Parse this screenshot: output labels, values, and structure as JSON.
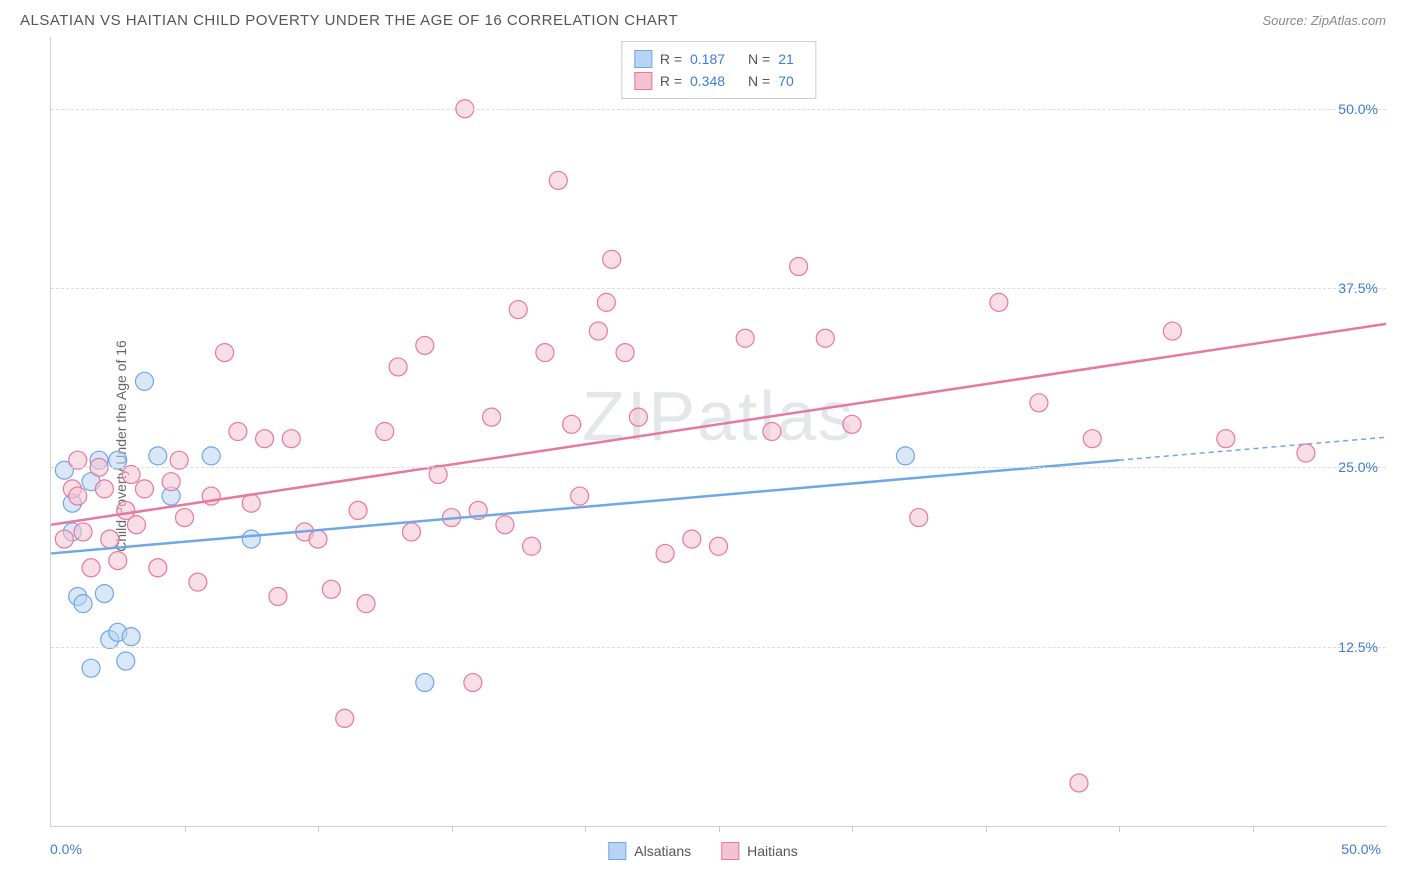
{
  "title": "ALSATIAN VS HAITIAN CHILD POVERTY UNDER THE AGE OF 16 CORRELATION CHART",
  "source": "Source: ZipAtlas.com",
  "ylabel": "Child Poverty Under the Age of 16",
  "watermark": "ZIPatlas",
  "chart": {
    "type": "scatter",
    "xlim": [
      0,
      50
    ],
    "ylim": [
      0,
      55
    ],
    "background_color": "#ffffff",
    "grid_color": "#dddddd",
    "border_color": "#d0d0d0",
    "tick_color": "#cccccc",
    "axis_label_color": "#3b7dd8",
    "ylabel_color": "#666666",
    "title_color": "#555555",
    "marker_radius": 9,
    "marker_opacity": 0.55,
    "line_width": 2.5,
    "y_gridlines": [
      12.5,
      25.0,
      37.5,
      50.0
    ],
    "y_tick_labels": [
      "12.5%",
      "25.0%",
      "37.5%",
      "50.0%"
    ],
    "x_ticks": [
      5,
      10,
      15,
      20,
      25,
      30,
      35,
      40,
      45
    ],
    "x_axis_labels": {
      "left": "0.0%",
      "right": "50.0%"
    }
  },
  "series": [
    {
      "name": "Alsatians",
      "stroke": "#6fa8e8",
      "fill": "#b9d4f3",
      "r": "0.187",
      "n": "21",
      "regression": {
        "solid": {
          "x1": 0,
          "y1": 19.0,
          "x2": 40,
          "y2": 25.5
        },
        "dashed": {
          "x1": 40,
          "y1": 25.5,
          "x2": 50,
          "y2": 27.1
        }
      },
      "points": [
        {
          "x": 0.5,
          "y": 24.8
        },
        {
          "x": 0.8,
          "y": 22.5
        },
        {
          "x": 1.0,
          "y": 16.0
        },
        {
          "x": 1.2,
          "y": 15.5
        },
        {
          "x": 1.5,
          "y": 24.0
        },
        {
          "x": 1.8,
          "y": 25.5
        },
        {
          "x": 2.0,
          "y": 16.2
        },
        {
          "x": 2.2,
          "y": 13.0
        },
        {
          "x": 2.5,
          "y": 13.5
        },
        {
          "x": 2.5,
          "y": 25.5
        },
        {
          "x": 2.8,
          "y": 11.5
        },
        {
          "x": 3.5,
          "y": 31.0
        },
        {
          "x": 3.0,
          "y": 13.2
        },
        {
          "x": 4.0,
          "y": 25.8
        },
        {
          "x": 4.5,
          "y": 23.0
        },
        {
          "x": 6.0,
          "y": 25.8
        },
        {
          "x": 7.5,
          "y": 20.0
        },
        {
          "x": 14.0,
          "y": 10.0
        },
        {
          "x": 32.0,
          "y": 25.8
        },
        {
          "x": 0.8,
          "y": 20.5
        },
        {
          "x": 1.5,
          "y": 11.0
        }
      ]
    },
    {
      "name": "Haitians",
      "stroke": "#e8789d",
      "fill": "#f5c2d2",
      "r": "0.348",
      "n": "70",
      "regression": {
        "solid": {
          "x1": 0,
          "y1": 21.0,
          "x2": 50,
          "y2": 35.0
        },
        "dashed": null
      },
      "points": [
        {
          "x": 0.5,
          "y": 20.0
        },
        {
          "x": 0.8,
          "y": 23.5
        },
        {
          "x": 1.0,
          "y": 23.0
        },
        {
          "x": 1.2,
          "y": 20.5
        },
        {
          "x": 1.5,
          "y": 18.0
        },
        {
          "x": 1.8,
          "y": 25.0
        },
        {
          "x": 2.0,
          "y": 23.5
        },
        {
          "x": 2.5,
          "y": 18.5
        },
        {
          "x": 2.8,
          "y": 22.0
        },
        {
          "x": 3.0,
          "y": 24.5
        },
        {
          "x": 3.2,
          "y": 21.0
        },
        {
          "x": 3.5,
          "y": 23.5
        },
        {
          "x": 4.0,
          "y": 18.0
        },
        {
          "x": 4.5,
          "y": 24.0
        },
        {
          "x": 5.0,
          "y": 21.5
        },
        {
          "x": 5.5,
          "y": 17.0
        },
        {
          "x": 6.0,
          "y": 23.0
        },
        {
          "x": 6.5,
          "y": 33.0
        },
        {
          "x": 7.0,
          "y": 27.5
        },
        {
          "x": 7.5,
          "y": 22.5
        },
        {
          "x": 8.0,
          "y": 27.0
        },
        {
          "x": 8.5,
          "y": 16.0
        },
        {
          "x": 9.0,
          "y": 27.0
        },
        {
          "x": 9.5,
          "y": 20.5
        },
        {
          "x": 10.0,
          "y": 20.0
        },
        {
          "x": 10.5,
          "y": 16.5
        },
        {
          "x": 11.0,
          "y": 7.5
        },
        {
          "x": 11.5,
          "y": 22.0
        },
        {
          "x": 11.8,
          "y": 15.5
        },
        {
          "x": 12.5,
          "y": 27.5
        },
        {
          "x": 13.0,
          "y": 32.0
        },
        {
          "x": 13.5,
          "y": 20.5
        },
        {
          "x": 14.0,
          "y": 33.5
        },
        {
          "x": 14.5,
          "y": 24.5
        },
        {
          "x": 15.0,
          "y": 21.5
        },
        {
          "x": 15.5,
          "y": 50.0
        },
        {
          "x": 15.8,
          "y": 10.0
        },
        {
          "x": 16.0,
          "y": 22.0
        },
        {
          "x": 16.5,
          "y": 28.5
        },
        {
          "x": 17.0,
          "y": 21.0
        },
        {
          "x": 17.5,
          "y": 36.0
        },
        {
          "x": 18.0,
          "y": 19.5
        },
        {
          "x": 18.5,
          "y": 33.0
        },
        {
          "x": 19.0,
          "y": 45.0
        },
        {
          "x": 19.5,
          "y": 28.0
        },
        {
          "x": 19.8,
          "y": 23.0
        },
        {
          "x": 20.5,
          "y": 34.5
        },
        {
          "x": 20.8,
          "y": 36.5
        },
        {
          "x": 21.0,
          "y": 39.5
        },
        {
          "x": 21.5,
          "y": 33.0
        },
        {
          "x": 22.0,
          "y": 28.5
        },
        {
          "x": 23.0,
          "y": 19.0
        },
        {
          "x": 24.0,
          "y": 20.0
        },
        {
          "x": 25.0,
          "y": 19.5
        },
        {
          "x": 26.0,
          "y": 34.0
        },
        {
          "x": 27.0,
          "y": 27.5
        },
        {
          "x": 28.0,
          "y": 39.0
        },
        {
          "x": 29.0,
          "y": 34.0
        },
        {
          "x": 30.0,
          "y": 28.0
        },
        {
          "x": 32.5,
          "y": 21.5
        },
        {
          "x": 35.5,
          "y": 36.5
        },
        {
          "x": 37.0,
          "y": 29.5
        },
        {
          "x": 38.5,
          "y": 3.0
        },
        {
          "x": 39.0,
          "y": 27.0
        },
        {
          "x": 42.0,
          "y": 34.5
        },
        {
          "x": 44.0,
          "y": 27.0
        },
        {
          "x": 47.0,
          "y": 26.0
        },
        {
          "x": 1.0,
          "y": 25.5
        },
        {
          "x": 2.2,
          "y": 20.0
        },
        {
          "x": 4.8,
          "y": 25.5
        }
      ]
    }
  ],
  "bottom_legend": [
    {
      "label": "Alsatians",
      "stroke": "#6fa8e8",
      "fill": "#b9d4f3"
    },
    {
      "label": "Haitians",
      "stroke": "#e8789d",
      "fill": "#f5c2d2"
    }
  ]
}
